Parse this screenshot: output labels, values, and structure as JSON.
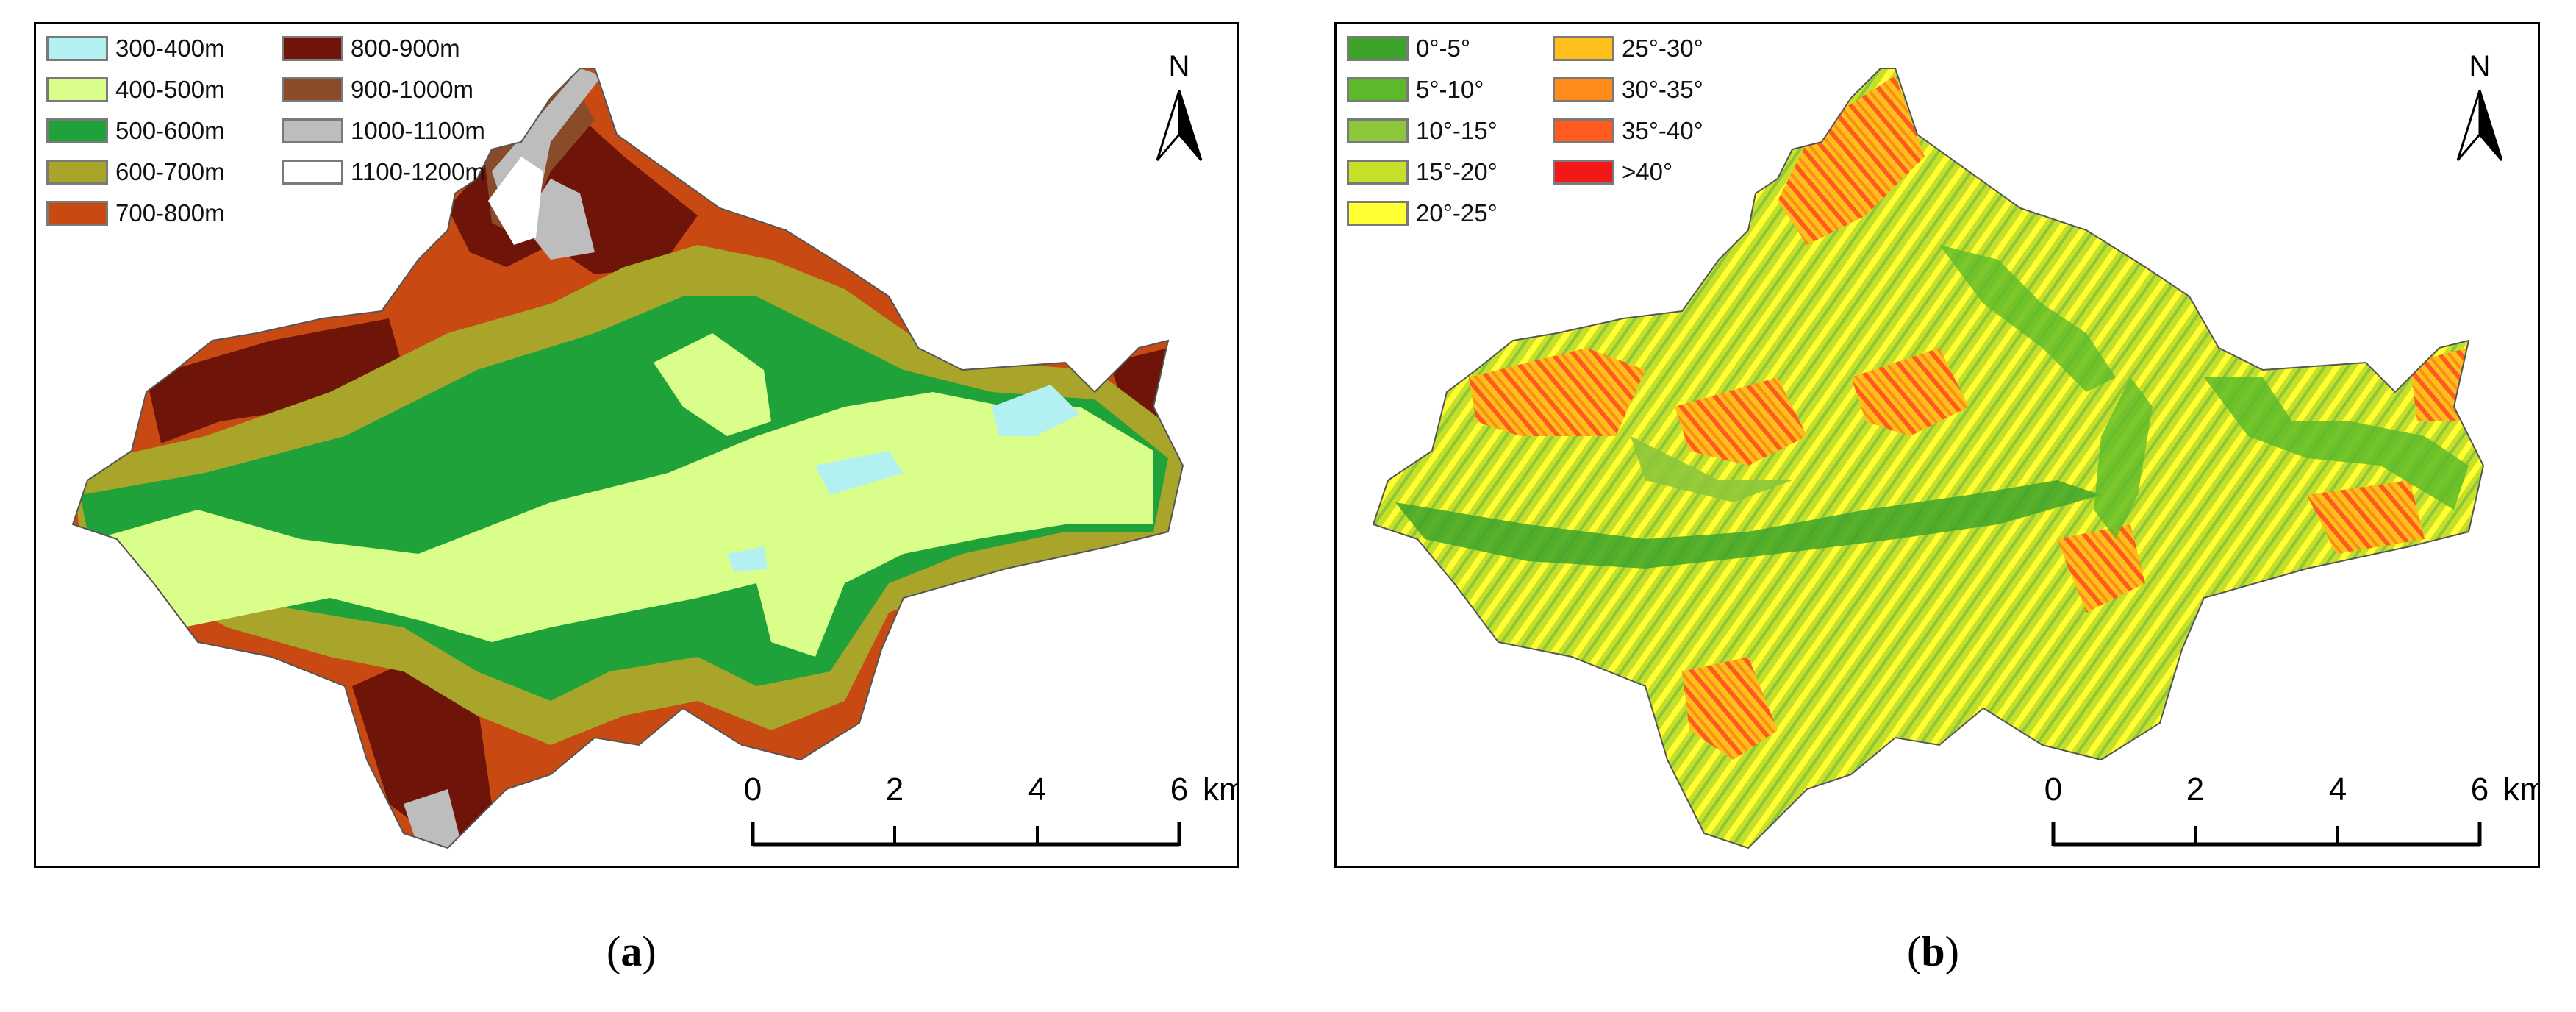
{
  "panel_a": {
    "caption": {
      "open": "(",
      "letter": "a",
      "close": ")"
    },
    "legend": [
      {
        "label": "300-400m",
        "color": "#b3f0f2"
      },
      {
        "label": "400-500m",
        "color": "#d9ff8a"
      },
      {
        "label": "500-600m",
        "color": "#1fa23a"
      },
      {
        "label": "600-700m",
        "color": "#a8a52a"
      },
      {
        "label": "700-800m",
        "color": "#c84a12"
      },
      {
        "label": "800-900m",
        "color": "#6e1408"
      },
      {
        "label": "900-1000m",
        "color": "#8a4b2a"
      },
      {
        "label": "1000-1100m",
        "color": "#bdbdbd"
      },
      {
        "label": "1100-1200m",
        "color": "#ffffff"
      }
    ],
    "north_label": "N",
    "scale": {
      "ticks": [
        "0",
        "2",
        "4",
        "6"
      ],
      "unit": "km"
    }
  },
  "panel_b": {
    "caption": {
      "open": "(",
      "letter": "b",
      "close": ")"
    },
    "legend": [
      {
        "label": "0°-5°",
        "color": "#3da32b"
      },
      {
        "label": "5°-10°",
        "color": "#5cba2a"
      },
      {
        "label": "10°-15°",
        "color": "#8cc63a"
      },
      {
        "label": "15°-20°",
        "color": "#c6e02a"
      },
      {
        "label": "20°-25°",
        "color": "#ffff33"
      },
      {
        "label": "25°-30°",
        "color": "#ffbf1a"
      },
      {
        "label": "30°-35°",
        "color": "#ff8c1a"
      },
      {
        "label": "35°-40°",
        "color": "#ff5a1f"
      },
      {
        "label": ">40°",
        "color": "#f21818"
      }
    ],
    "north_label": "N",
    "scale": {
      "ticks": [
        "0",
        "2",
        "4",
        "6"
      ],
      "unit": "km"
    }
  }
}
